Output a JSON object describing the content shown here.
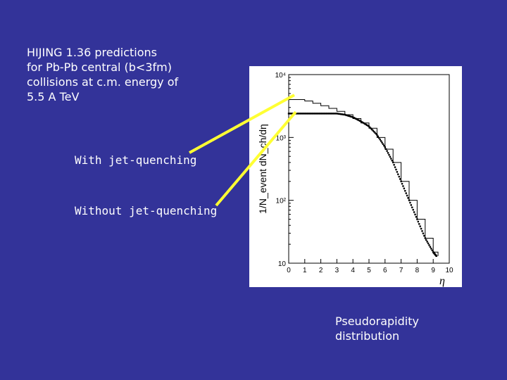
{
  "description": "HIJING 1.36 predictions\nfor Pb-Pb central (b<3fm)\ncollisions at c.m. energy of\n5.5 A TeV",
  "callouts": {
    "with": "With jet-quenching",
    "without": "Without jet-quenching"
  },
  "caption": "Pseudorapidity\ndistribution",
  "colors": {
    "background": "#333399",
    "arrow": "#ffff33",
    "plot_bg": "#ffffff"
  },
  "chart_data": {
    "type": "line",
    "xlabel": "η",
    "ylabel": "1/N_event dN_ch/dη",
    "xlim": [
      0,
      10
    ],
    "ylim": [
      10,
      10000
    ],
    "yscale": "log",
    "x_ticks": [
      "0",
      "1",
      "2",
      "3",
      "4",
      "5",
      "6",
      "7",
      "8",
      "9",
      "10"
    ],
    "y_ticks": [
      {
        "value": 10,
        "label": "10"
      },
      {
        "value": 100,
        "label": "10²"
      },
      {
        "value": 1000,
        "label": "10³"
      },
      {
        "value": 10000,
        "label": "10⁴"
      }
    ],
    "series": [
      {
        "style": "step",
        "x": [
          0,
          0.5,
          1.0,
          1.5,
          2.0,
          2.5,
          3.0,
          3.5,
          4.0,
          4.5,
          5.0,
          5.5,
          6.0,
          6.5,
          7.0,
          7.5,
          8.0,
          8.5,
          9.0,
          9.3
        ],
        "y": [
          4000,
          4000,
          3800,
          3500,
          3200,
          2900,
          2600,
          2300,
          2000,
          1700,
          1400,
          1000,
          650,
          400,
          200,
          100,
          50,
          25,
          15,
          13
        ]
      },
      {
        "style": "points",
        "x": [
          0,
          0.5,
          1.0,
          1.5,
          2.0,
          2.5,
          3.0,
          3.5,
          4.0,
          4.5,
          5.0,
          5.5,
          6.0,
          6.5,
          7.0,
          7.5,
          8.0,
          8.5,
          9.0,
          9.2
        ],
        "y": [
          2400,
          2400,
          2400,
          2400,
          2400,
          2400,
          2400,
          2300,
          2100,
          1800,
          1500,
          1100,
          700,
          400,
          200,
          100,
          50,
          25,
          15,
          13
        ]
      }
    ]
  }
}
